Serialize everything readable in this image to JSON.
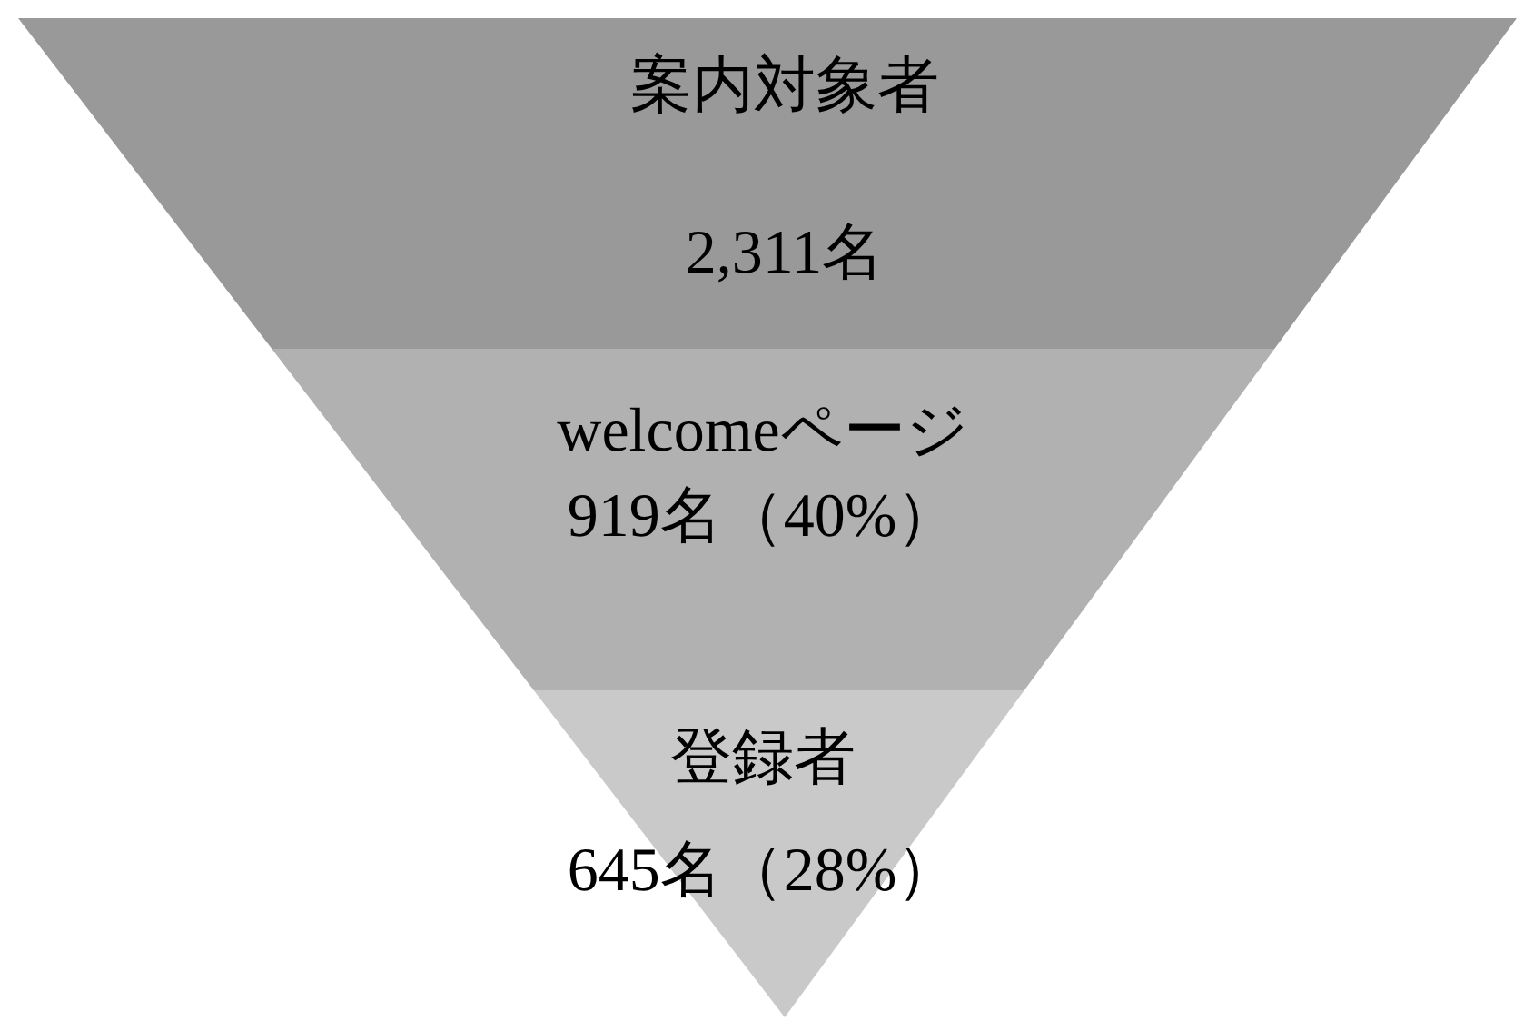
{
  "chart_data": {
    "type": "other",
    "categories": [
      "案内対象者",
      "welcomeページ",
      "登録者"
    ],
    "values": [
      2311,
      919,
      645
    ],
    "value_labels": [
      "2,311名",
      "919名（40%）",
      "645名（28%）"
    ],
    "colors": [
      "#999999",
      "#b1b1b1",
      "#c9c9c9"
    ]
  }
}
